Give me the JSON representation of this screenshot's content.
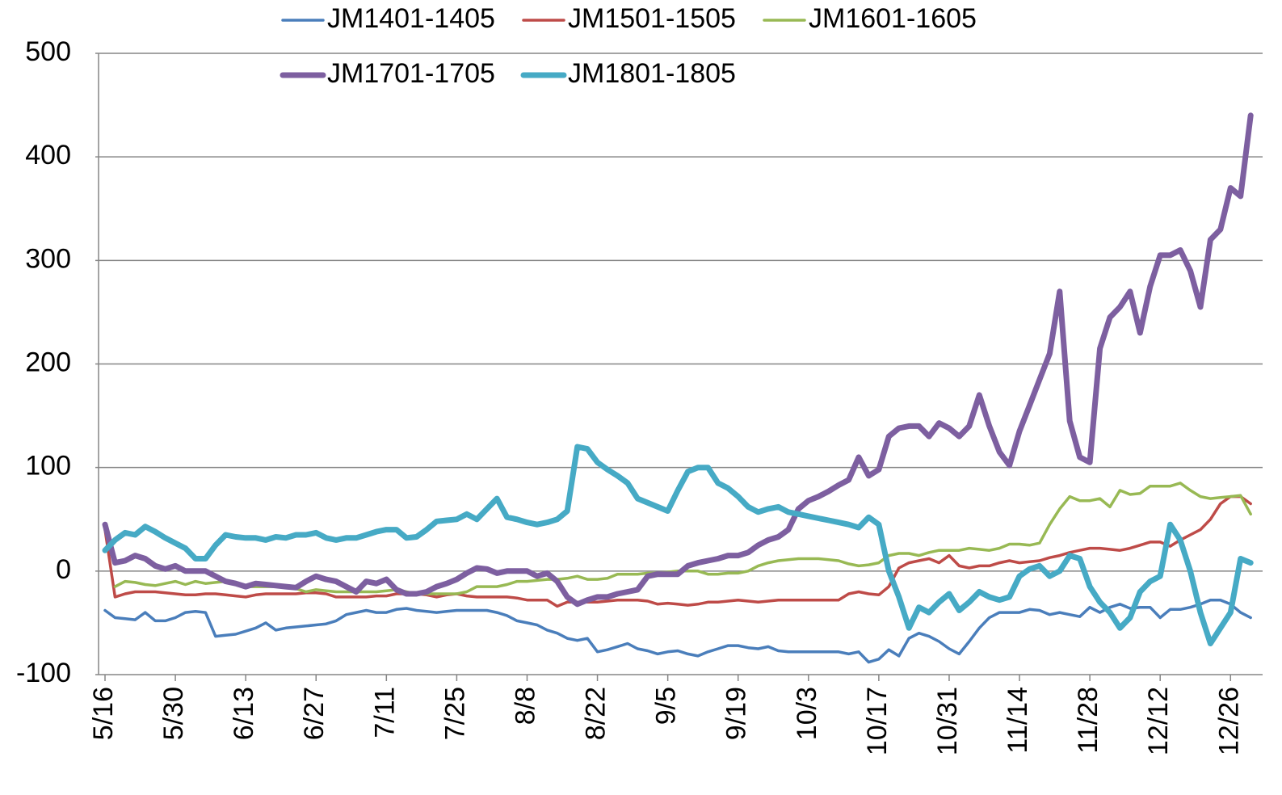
{
  "chart_data": {
    "type": "line",
    "categories": [
      "5/16",
      null,
      null,
      null,
      null,
      null,
      null,
      "5/30",
      null,
      null,
      null,
      null,
      null,
      null,
      "6/13",
      null,
      null,
      null,
      null,
      null,
      null,
      "6/27",
      null,
      null,
      null,
      null,
      null,
      null,
      "7/11",
      null,
      null,
      null,
      null,
      null,
      null,
      "7/25",
      null,
      null,
      null,
      null,
      null,
      null,
      "8/8",
      null,
      null,
      null,
      null,
      null,
      null,
      "8/22",
      null,
      null,
      null,
      null,
      null,
      null,
      "9/5",
      null,
      null,
      null,
      null,
      null,
      null,
      "9/19",
      null,
      null,
      null,
      null,
      null,
      null,
      "10/3",
      null,
      null,
      null,
      null,
      null,
      null,
      "10/17",
      null,
      null,
      null,
      null,
      null,
      null,
      "10/31",
      null,
      null,
      null,
      null,
      null,
      null,
      "11/14",
      null,
      null,
      null,
      null,
      null,
      null,
      "11/28",
      null,
      null,
      null,
      null,
      null,
      null,
      "12/12",
      null,
      null,
      null,
      null,
      null,
      null,
      "12/26",
      null,
      null
    ],
    "series": [
      {
        "name": "JM1401-1405",
        "color": "#4a7ebb",
        "line_width": 3.5,
        "values": [
          -38,
          -45,
          -46,
          -47,
          -40,
          -48,
          -48,
          -45,
          -40,
          -39,
          -40,
          -63,
          -62,
          -61,
          -58,
          -55,
          -50,
          -57,
          -55,
          -54,
          -53,
          -52,
          -51,
          -48,
          -42,
          -40,
          -38,
          -40,
          -40,
          -37,
          -36,
          -38,
          -39,
          -40,
          -39,
          -38,
          -38,
          -38,
          -38,
          -40,
          -43,
          -48,
          -50,
          -52,
          -57,
          -60,
          -65,
          -67,
          -65,
          -78,
          -76,
          -73,
          -70,
          -75,
          -77,
          -80,
          -78,
          -77,
          -80,
          -82,
          -78,
          -75,
          -72,
          -72,
          -74,
          -75,
          -73,
          -77,
          -78,
          -78,
          -78,
          -78,
          -78,
          -78,
          -80,
          -78,
          -88,
          -85,
          -76,
          -82,
          -65,
          -60,
          -63,
          -68,
          -75,
          -80,
          -68,
          -55,
          -45,
          -40,
          -40,
          -40,
          -37,
          -38,
          -42,
          -40,
          -42,
          -44,
          -35,
          -40,
          -35,
          -32,
          -36,
          -35,
          -35,
          -45,
          -37,
          -37,
          -35,
          -32,
          -28,
          -28,
          -32,
          -40,
          -45
        ]
      },
      {
        "name": "JM1501-1505",
        "color": "#be4b48",
        "line_width": 3.5,
        "values": [
          40,
          -25,
          -22,
          -20,
          -20,
          -20,
          -21,
          -22,
          -23,
          -23,
          -22,
          -22,
          -23,
          -24,
          -25,
          -23,
          -22,
          -22,
          -22,
          -22,
          -21,
          -21,
          -22,
          -25,
          -25,
          -25,
          -25,
          -24,
          -24,
          -22,
          -22,
          -22,
          -23,
          -25,
          -23,
          -22,
          -24,
          -25,
          -25,
          -25,
          -25,
          -26,
          -28,
          -28,
          -28,
          -34,
          -30,
          -30,
          -30,
          -30,
          -29,
          -28,
          -28,
          -28,
          -29,
          -32,
          -31,
          -32,
          -33,
          -32,
          -30,
          -30,
          -29,
          -28,
          -29,
          -30,
          -29,
          -28,
          -28,
          -28,
          -28,
          -28,
          -28,
          -28,
          -22,
          -20,
          -22,
          -23,
          -15,
          3,
          8,
          10,
          12,
          8,
          15,
          5,
          3,
          5,
          5,
          8,
          10,
          8,
          9,
          10,
          13,
          15,
          18,
          20,
          22,
          22,
          21,
          20,
          22,
          25,
          28,
          28,
          24,
          30,
          35,
          40,
          50,
          65,
          72,
          72,
          65
        ]
      },
      {
        "name": "JM1601-1605",
        "color": "#98b954",
        "line_width": 3.5,
        "values": [
          null,
          -15,
          -10,
          -11,
          -13,
          -14,
          -12,
          -10,
          -13,
          -10,
          -12,
          -11,
          -10,
          -13,
          -15,
          -15,
          -15,
          -15,
          -15,
          -17,
          -20,
          -18,
          -19,
          -20,
          -20,
          -20,
          -20,
          -20,
          -19,
          -18,
          -20,
          -22,
          -22,
          -22,
          -22,
          -22,
          -20,
          -15,
          -15,
          -15,
          -13,
          -10,
          -10,
          -9,
          -8,
          -8,
          -7,
          -5,
          -8,
          -8,
          -7,
          -3,
          -3,
          -3,
          -2,
          -2,
          -1,
          0,
          0,
          0,
          -3,
          -3,
          -2,
          -2,
          0,
          5,
          8,
          10,
          11,
          12,
          12,
          12,
          11,
          10,
          7,
          5,
          6,
          8,
          15,
          17,
          17,
          15,
          18,
          20,
          20,
          20,
          22,
          21,
          20,
          22,
          26,
          26,
          25,
          27,
          45,
          60,
          72,
          68,
          68,
          70,
          62,
          78,
          74,
          75,
          82,
          82,
          82,
          85,
          78,
          72,
          70,
          71,
          72,
          73,
          55
        ]
      },
      {
        "name": "JM1701-1705",
        "color": "#7d5fa0",
        "line_width": 7,
        "values": [
          45,
          8,
          10,
          15,
          12,
          5,
          2,
          5,
          0,
          0,
          0,
          -5,
          -10,
          -12,
          -15,
          -12,
          -13,
          -14,
          -15,
          -16,
          -10,
          -5,
          -8,
          -10,
          -15,
          -20,
          -10,
          -12,
          -8,
          -18,
          -22,
          -22,
          -20,
          -15,
          -12,
          -8,
          -2,
          3,
          2,
          -2,
          0,
          0,
          0,
          -5,
          -2,
          -10,
          -25,
          -32,
          -28,
          -25,
          -25,
          -22,
          -20,
          -18,
          -5,
          -3,
          -3,
          -3,
          5,
          8,
          10,
          12,
          15,
          15,
          18,
          25,
          30,
          33,
          40,
          60,
          68,
          72,
          77,
          83,
          88,
          110,
          92,
          98,
          130,
          138,
          140,
          140,
          130,
          143,
          138,
          130,
          140,
          170,
          140,
          115,
          102,
          135,
          160,
          185,
          210,
          270,
          145,
          110,
          105,
          215,
          245,
          255,
          270,
          230,
          275,
          305,
          305,
          310,
          290,
          255,
          320,
          330,
          370,
          362,
          440
        ]
      },
      {
        "name": "JM1801-1805",
        "color": "#46aac5",
        "line_width": 7,
        "values": [
          20,
          30,
          37,
          35,
          43,
          38,
          32,
          27,
          22,
          12,
          12,
          25,
          35,
          33,
          32,
          32,
          30,
          33,
          32,
          35,
          35,
          37,
          32,
          30,
          32,
          32,
          35,
          38,
          40,
          40,
          32,
          33,
          40,
          48,
          49,
          50,
          55,
          50,
          60,
          70,
          52,
          50,
          47,
          45,
          47,
          50,
          58,
          120,
          118,
          105,
          98,
          92,
          85,
          70,
          66,
          62,
          58,
          78,
          96,
          100,
          100,
          85,
          80,
          72,
          62,
          57,
          60,
          62,
          57,
          55,
          53,
          51,
          49,
          47,
          45,
          42,
          52,
          45,
          0,
          -25,
          -55,
          -35,
          -40,
          -30,
          -22,
          -38,
          -30,
          -20,
          -25,
          -28,
          -25,
          -5,
          2,
          5,
          -5,
          0,
          15,
          12,
          -15,
          -30,
          -40,
          -55,
          -45,
          -20,
          -10,
          -5,
          45,
          30,
          0,
          -40,
          -70,
          -55,
          -40,
          12,
          8
        ]
      }
    ],
    "ylim": [
      -100,
      500
    ],
    "yticks": [
      -100,
      0,
      100,
      200,
      300,
      400,
      500
    ],
    "grid": true,
    "legend": "top"
  }
}
